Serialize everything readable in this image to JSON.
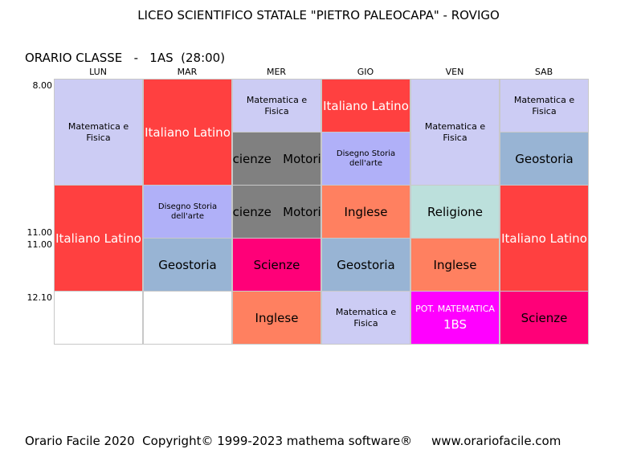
{
  "title": "LICEO SCIENTIFICO STATALE \"PIETRO PALEOCAPA\" - ROVIGO",
  "heading": "ORARIO CLASSE   -   1AS  (28:00)",
  "days": [
    "LUN",
    "MAR",
    "MER",
    "GIO",
    "VEN",
    "SAB"
  ],
  "times": [
    "8.00",
    "11.00",
    "11.00",
    "12.10"
  ],
  "cells": {
    "lun_1": "Matematica e Fisica",
    "lun_2": "Italiano Latino",
    "mar_1": "Italiano Latino",
    "mar_2": "Disegno Storia dell'arte",
    "mar_3": "Geostoria",
    "mer_1": "Matematica e Fisica",
    "mer_2": "Scienze   Motorie",
    "mer_3": "Scienze   Motorie",
    "mer_4": "Scienze",
    "mer_5": "Inglese",
    "gio_1": "Italiano Latino",
    "gio_2": "Disegno Storia dell'arte",
    "gio_3": "Inglese",
    "gio_4": "Geostoria",
    "gio_5": "Matematica e Fisica",
    "ven_1": "Matematica e Fisica",
    "ven_2": "Religione",
    "ven_3": "Inglese",
    "ven_4_line1": "POT. MATEMATICA",
    "ven_4_line2": "1BS",
    "sab_1": "Matematica e Fisica",
    "sab_2": "Geostoria",
    "sab_3": "Italiano Latino",
    "sab_4": "Scienze"
  },
  "subject_colors": {
    "matematica_fisica": "#ccccf4",
    "italiano_latino": "#ff4040",
    "disegno": "#b0b0f8",
    "geostoria": "#98b4d4",
    "scienze_motorie": "#808080",
    "scienze": "#ff0078",
    "inglese": "#ff8060",
    "religione": "#bce0dc",
    "potenziamento": "#ff00ff"
  },
  "footer": "Orario Facile 2020  Copyright© 1999-2023 mathema software®     www.orariofacile.com"
}
